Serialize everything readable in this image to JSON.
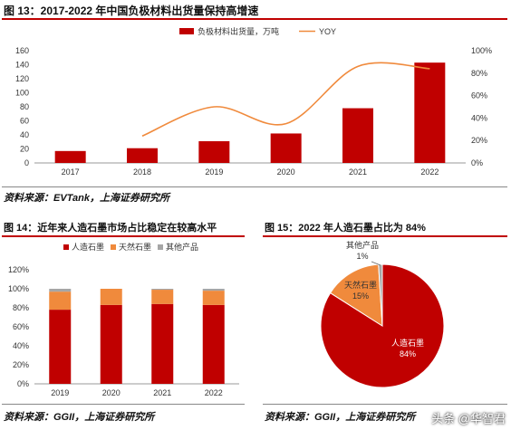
{
  "fig13": {
    "title": "图 13：2017-2022 年中国负极材料出货量保持高增速",
    "source": "资料来源：EVTank，上海证券研究所"
  },
  "fig14": {
    "title": "图 14：近年来人造石墨市场占比稳定在较高水平",
    "source": "资料来源：GGII，上海证券研究所"
  },
  "fig15": {
    "title": "图 15：2022 年人造石墨占比为 84%",
    "source": "资料来源：GGII，上海证券研究所"
  },
  "watermark": "头条 @华智君",
  "colors": {
    "red": "#c00000",
    "orange": "#f08a3c",
    "gray": "#a6a6a6"
  },
  "chart_data": [
    {
      "type": "bar",
      "categories": [
        "2017",
        "2018",
        "2019",
        "2020",
        "2021",
        "2022"
      ],
      "series": [
        {
          "name": "负极材料出货量，万吨",
          "type": "bar",
          "axis": "left",
          "values": [
            17,
            21,
            31,
            42,
            78,
            143
          ]
        },
        {
          "name": "YOY",
          "type": "line",
          "axis": "right",
          "values": [
            null,
            0.24,
            0.5,
            0.35,
            0.86,
            0.84
          ]
        }
      ],
      "ylim": [
        0,
        160
      ],
      "yticks": [
        "0",
        "20",
        "40",
        "60",
        "80",
        "100",
        "120",
        "140",
        "160"
      ],
      "y2lim": [
        0,
        1
      ],
      "y2ticks": [
        "0%",
        "20%",
        "40%",
        "60%",
        "80%",
        "100%"
      ],
      "legend": "top"
    },
    {
      "type": "bar",
      "stacked": true,
      "categories": [
        "2019",
        "2020",
        "2021",
        "2022"
      ],
      "series": [
        {
          "name": "人造石墨",
          "values": [
            0.78,
            0.83,
            0.84,
            0.83
          ]
        },
        {
          "name": "天然石墨",
          "values": [
            0.19,
            0.17,
            0.15,
            0.15
          ]
        },
        {
          "name": "其他产品",
          "values": [
            0.03,
            0.0,
            0.01,
            0.02
          ]
        }
      ],
      "ylim": [
        0,
        1.2
      ],
      "yticks": [
        "0%",
        "20%",
        "40%",
        "60%",
        "80%",
        "100%",
        "120%"
      ],
      "legend": "top"
    },
    {
      "type": "pie",
      "labels": [
        "人造石墨",
        "天然石墨",
        "其他产品"
      ],
      "values": [
        84,
        15,
        1
      ],
      "value_labels": [
        "84%",
        "15%",
        "1%"
      ]
    }
  ]
}
